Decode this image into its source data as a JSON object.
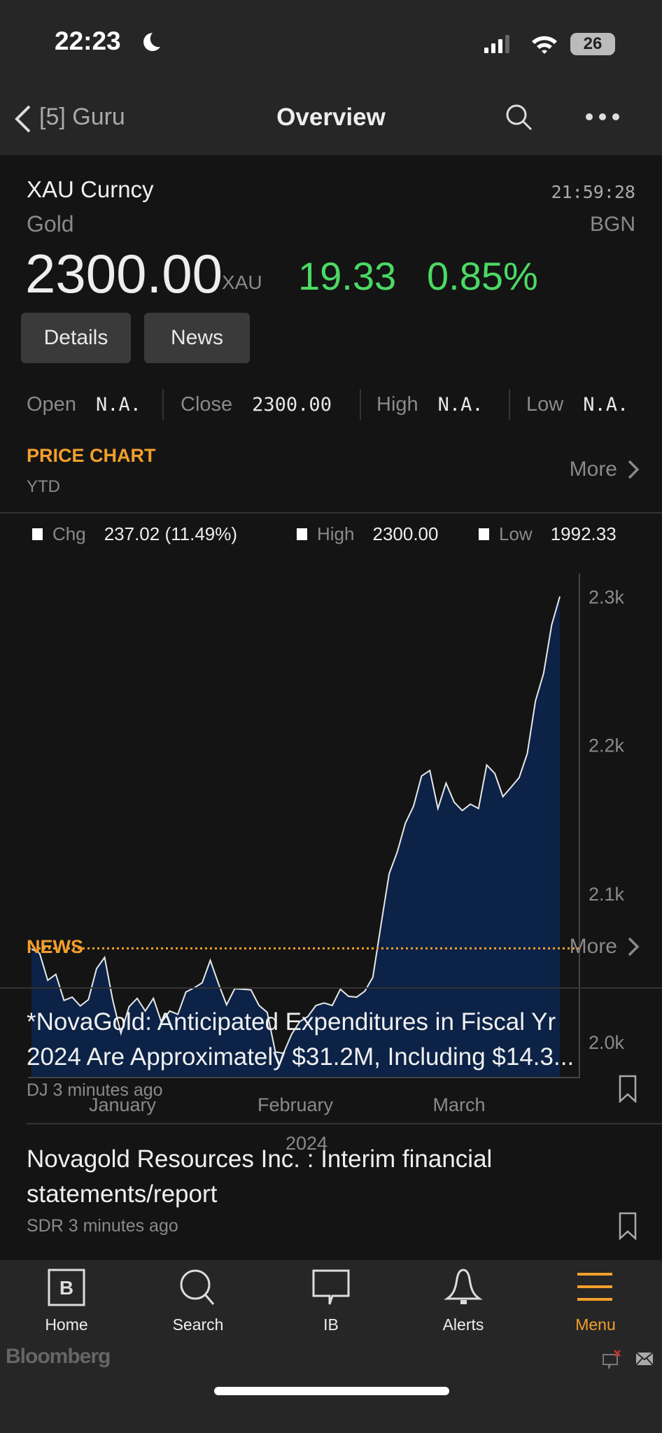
{
  "status_bar": {
    "time": "22:23",
    "battery": "26"
  },
  "nav": {
    "back_label": "[5] Guru",
    "title": "Overview",
    "icons": [
      "chevron-left-icon",
      "search-icon",
      "more-icon"
    ]
  },
  "security": {
    "ticker": "XAU Curncy",
    "name": "Gold",
    "time": "21:59:28",
    "source": "BGN",
    "price": "2300.00",
    "currency": "XAU",
    "change": "19.33",
    "change_pct": "0.85%",
    "up_color": "#4cd964"
  },
  "buttons": {
    "details": "Details",
    "news": "News"
  },
  "ohlc": {
    "open_label": "Open",
    "open": "N.A.",
    "close_label": "Close",
    "close": "2300.00",
    "high_label": "High",
    "high": "N.A.",
    "low_label": "Low",
    "low": "N.A."
  },
  "price_chart": {
    "title": "PRICE CHART",
    "period": "YTD",
    "more": "More"
  },
  "chart_data": {
    "type": "area",
    "legend": {
      "chg_label": "Chg",
      "chg": "237.02 (11.49%)",
      "high_label": "High",
      "high": "2300.00",
      "low_label": "Low",
      "low": "1992.33"
    },
    "reference_line": 2062.98,
    "ylim": [
      1980,
      2310
    ],
    "yticks": [
      "2.3k",
      "2.2k",
      "2.1k",
      "2.0k"
    ],
    "ytick_values": [
      2300,
      2200,
      2100,
      2000
    ],
    "xticks": [
      "January",
      "February",
      "March"
    ],
    "xsub": "2024",
    "values": [
      2062.6,
      2059.7,
      2041.5,
      2045.5,
      2027.9,
      2030.1,
      2024.2,
      2028.4,
      2049.2,
      2056.9,
      2027.9,
      2005.7,
      2023.6,
      2029.3,
      2020.8,
      2029.3,
      2013.1,
      2020.8,
      2018.5,
      2033.6,
      2036.4,
      2039.8,
      2054.9,
      2039.2,
      2025.0,
      2035.8,
      2035.5,
      2035.0,
      2024.5,
      2019.9,
      1993.2,
      1992.3,
      2005.1,
      2013.6,
      2017.1,
      2024.5,
      2026.2,
      2024.5,
      2035.5,
      2030.7,
      2030.1,
      2034.1,
      2043.5,
      2079.0,
      2113.2,
      2127.9,
      2147.3,
      2158.7,
      2179.1,
      2182.8,
      2157.2,
      2174.3,
      2161.5,
      2155.8,
      2160.1,
      2157.2,
      2186.5,
      2180.8,
      2165.2,
      2171.5,
      2178.0,
      2194.2,
      2229.7,
      2248.2,
      2280.9,
      2300.0
    ],
    "line_color": "#e8e8e8",
    "fill_color": "#0c2246",
    "reference_color": "#f39f2b"
  },
  "news": {
    "title": "NEWS",
    "more": "More",
    "items": [
      {
        "line1": "*NovaGold: Anticipated Expenditures in Fiscal Yr",
        "line2": "2024 Are Approximately $31.2M, Including $14.3...",
        "meta": "DJ 3 minutes ago"
      },
      {
        "line1": "Novagold Resources Inc. : Interim financial",
        "line2": "statements/report",
        "meta": "SDR 3 minutes ago"
      }
    ]
  },
  "tabs": [
    {
      "label": "Home"
    },
    {
      "label": "Search"
    },
    {
      "label": "IB"
    },
    {
      "label": "Alerts"
    },
    {
      "label": "Menu",
      "active": true
    }
  ],
  "footer": {
    "brand": "Bloomberg"
  },
  "accent": "#f39f2b"
}
